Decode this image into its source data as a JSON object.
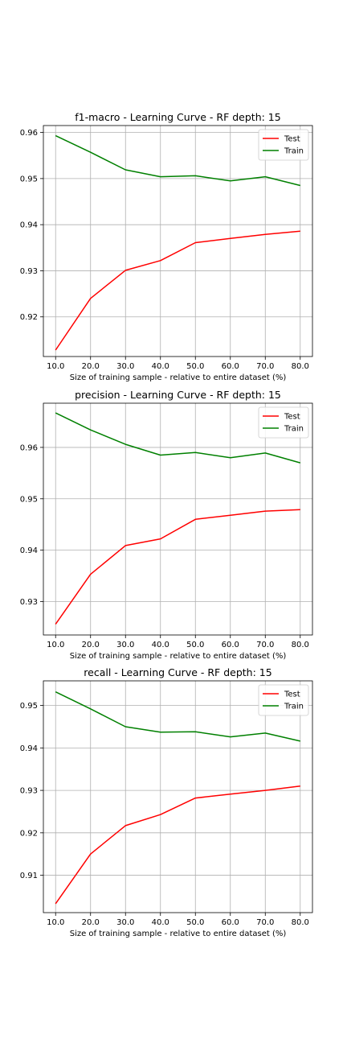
{
  "colors": {
    "test": "#ff0000",
    "train": "#008000",
    "grid": "#b0b0b0",
    "axis": "#000000"
  },
  "chart_data": [
    {
      "type": "line",
      "title": "f1-macro - Learning Curve - RF depth: 15",
      "xlabel": "Size of training sample - relative to entire dataset (%)",
      "ylabel": "",
      "x": [
        10.0,
        20.0,
        30.0,
        40.0,
        50.0,
        60.0,
        70.0,
        80.0
      ],
      "xticks": [
        "10.0",
        "20.0",
        "30.0",
        "40.0",
        "50.0",
        "60.0",
        "70.0",
        "80.0"
      ],
      "yticks": [
        0.92,
        0.93,
        0.94,
        0.95,
        0.96
      ],
      "ytick_labels": [
        "0.92",
        "0.93",
        "0.94",
        "0.95",
        "0.96"
      ],
      "xlim": [
        6.5,
        83.5
      ],
      "ylim": [
        0.9114,
        0.9615
      ],
      "grid": true,
      "legend": "upper right",
      "series": [
        {
          "name": "Test",
          "color": "#ff0000",
          "values": [
            0.9128,
            0.924,
            0.9301,
            0.9322,
            0.9361,
            0.937,
            0.9379,
            0.9386
          ]
        },
        {
          "name": "Train",
          "color": "#008000",
          "values": [
            0.9593,
            0.9557,
            0.9519,
            0.9504,
            0.9506,
            0.9495,
            0.9504,
            0.9485
          ]
        }
      ]
    },
    {
      "type": "line",
      "title": "precision - Learning Curve - RF depth: 15",
      "xlabel": "Size of training sample - relative to entire dataset (%)",
      "ylabel": "",
      "x": [
        10.0,
        20.0,
        30.0,
        40.0,
        50.0,
        60.0,
        70.0,
        80.0
      ],
      "xticks": [
        "10.0",
        "20.0",
        "30.0",
        "40.0",
        "50.0",
        "60.0",
        "70.0",
        "80.0"
      ],
      "yticks": [
        0.93,
        0.94,
        0.95,
        0.96
      ],
      "ytick_labels": [
        "0.93",
        "0.94",
        "0.95",
        "0.96"
      ],
      "xlim": [
        6.5,
        83.5
      ],
      "ylim": [
        0.9235,
        0.9686
      ],
      "grid": true,
      "legend": "upper right",
      "series": [
        {
          "name": "Test",
          "color": "#ff0000",
          "values": [
            0.9256,
            0.9353,
            0.9409,
            0.9422,
            0.946,
            0.9468,
            0.9476,
            0.9479
          ]
        },
        {
          "name": "Train",
          "color": "#008000",
          "values": [
            0.9667,
            0.9634,
            0.9606,
            0.9585,
            0.959,
            0.958,
            0.9589,
            0.957
          ]
        }
      ]
    },
    {
      "type": "line",
      "title": "recall - Learning Curve - RF depth: 15",
      "xlabel": "Size of training sample - relative to entire dataset (%)",
      "ylabel": "",
      "x": [
        10.0,
        20.0,
        30.0,
        40.0,
        50.0,
        60.0,
        70.0,
        80.0
      ],
      "xticks": [
        "10.0",
        "20.0",
        "30.0",
        "40.0",
        "50.0",
        "60.0",
        "70.0",
        "80.0"
      ],
      "yticks": [
        0.91,
        0.92,
        0.93,
        0.94,
        0.95
      ],
      "ytick_labels": [
        "0.91",
        "0.92",
        "0.93",
        "0.94",
        "0.95"
      ],
      "xlim": [
        6.5,
        83.5
      ],
      "ylim": [
        0.9012,
        0.9558
      ],
      "grid": true,
      "legend": "upper right",
      "series": [
        {
          "name": "Test",
          "color": "#ff0000",
          "values": [
            0.9033,
            0.915,
            0.9217,
            0.9243,
            0.9282,
            0.9291,
            0.93,
            0.931
          ]
        },
        {
          "name": "Train",
          "color": "#008000",
          "values": [
            0.9532,
            0.9492,
            0.945,
            0.9437,
            0.9438,
            0.9426,
            0.9435,
            0.9416
          ]
        }
      ]
    }
  ]
}
